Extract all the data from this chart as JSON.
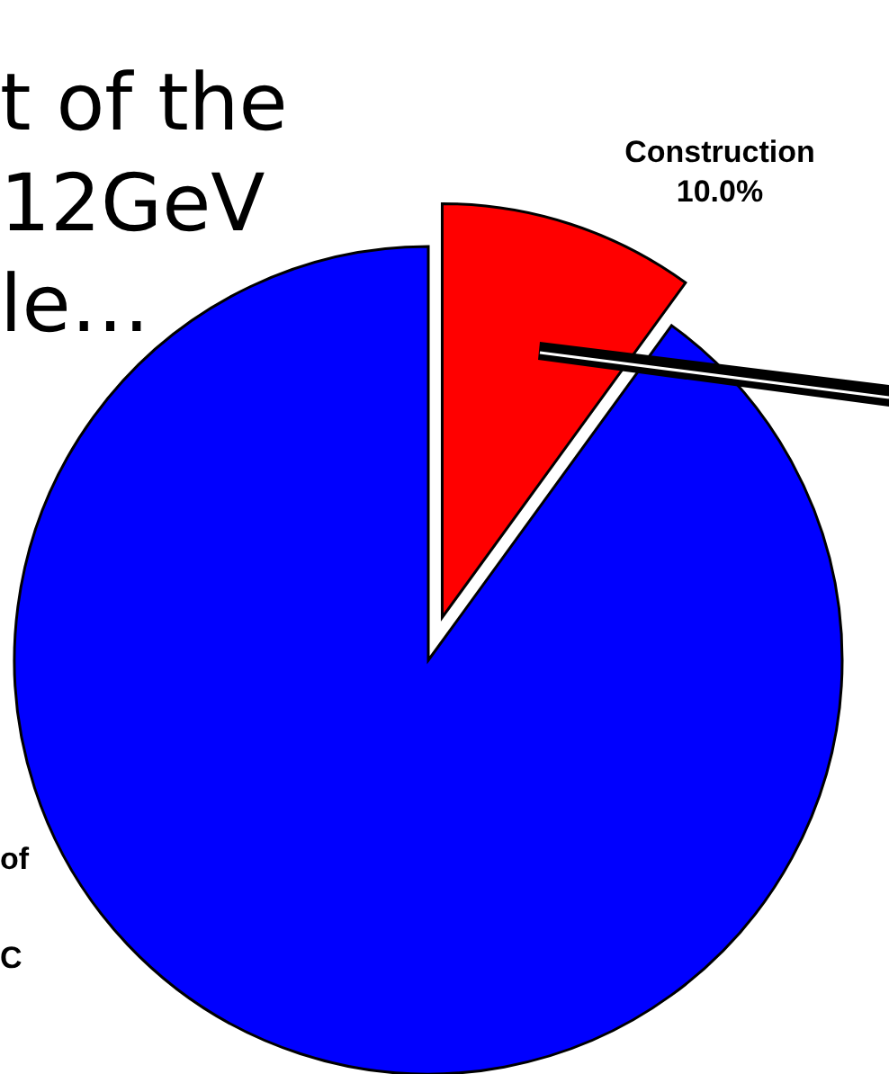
{
  "chart_data": {
    "type": "pie",
    "categories": [
      "of\nC",
      "Construction"
    ],
    "values": [
      90,
      10
    ],
    "colors": [
      "#0000ff",
      "#ff0000"
    ],
    "value_labels": [
      null,
      "10.0%"
    ],
    "annotations": [
      "t of the",
      "12GeV",
      "le…"
    ]
  }
}
